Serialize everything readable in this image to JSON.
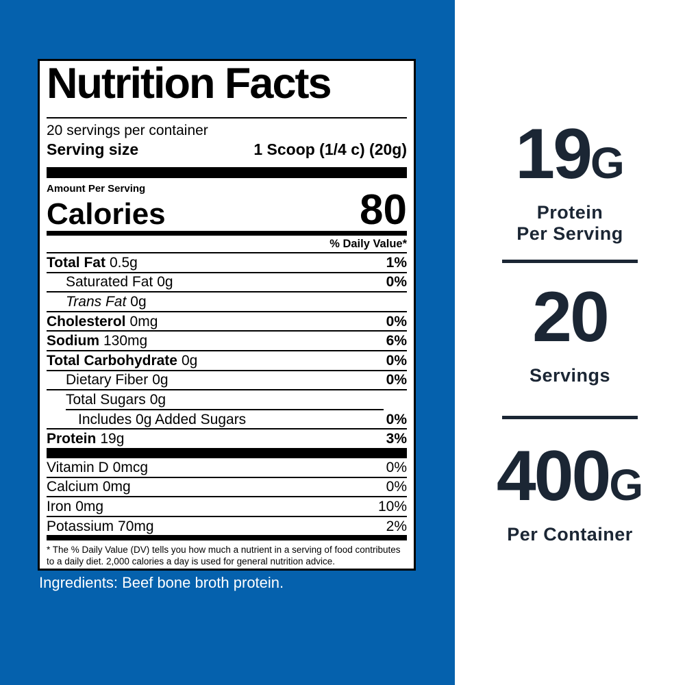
{
  "colors": {
    "background_blue": "#0561ad",
    "stats_navy": "#1b2634",
    "label_black": "#000000",
    "label_white": "#ffffff"
  },
  "nutrition_label": {
    "title": "Nutrition Facts",
    "servings_per_container": "20 servings per container",
    "serving_size_label": "Serving size",
    "serving_size_value": "1 Scoop (1/4 c) (20g)",
    "amount_per_serving": "Amount Per Serving",
    "calories_label": "Calories",
    "calories_value": "80",
    "daily_value_header": "% Daily Value*",
    "rows": [
      {
        "name": "Total Fat",
        "amount": "0.5g",
        "dv": "1%",
        "bold": true,
        "italic": false,
        "indent": 0,
        "sep_indent": false
      },
      {
        "name": "Saturated Fat",
        "amount": "0g",
        "dv": "0%",
        "bold": false,
        "italic": false,
        "indent": 1,
        "sep_indent": false
      },
      {
        "name": "Trans Fat",
        "amount": "0g",
        "dv": "",
        "bold": false,
        "italic": true,
        "indent": 1,
        "sep_indent": false
      },
      {
        "name": "Cholesterol",
        "amount": "0mg",
        "dv": "0%",
        "bold": true,
        "italic": false,
        "indent": 0,
        "sep_indent": false
      },
      {
        "name": "Sodium",
        "amount": "130mg",
        "dv": "6%",
        "bold": true,
        "italic": false,
        "indent": 0,
        "sep_indent": false
      },
      {
        "name": "Total Carbohydrate",
        "amount": "0g",
        "dv": "0%",
        "bold": true,
        "italic": false,
        "indent": 0,
        "sep_indent": false
      },
      {
        "name": "Dietary Fiber",
        "amount": "0g",
        "dv": "0%",
        "bold": false,
        "italic": false,
        "indent": 1,
        "sep_indent": false
      },
      {
        "name": "Total Sugars",
        "amount": "0g",
        "dv": "",
        "bold": false,
        "italic": false,
        "indent": 1,
        "sep_indent": false
      },
      {
        "name": "Includes 0g Added Sugars",
        "amount": "",
        "dv": "0%",
        "bold": false,
        "italic": false,
        "indent": 2,
        "sep_indent": true
      },
      {
        "name": "Protein",
        "amount": "19g",
        "dv": "3%",
        "bold": true,
        "italic": false,
        "indent": 0,
        "sep_indent": false
      }
    ],
    "micronutrients": [
      {
        "name": "Vitamin D",
        "amount": "0mcg",
        "dv": "0%"
      },
      {
        "name": "Calcium",
        "amount": "0mg",
        "dv": "0%"
      },
      {
        "name": "Iron",
        "amount": "0mg",
        "dv": "10%"
      },
      {
        "name": "Potassium",
        "amount": "70mg",
        "dv": "2%"
      }
    ],
    "footnote": "* The % Daily Value (DV) tells you how much a nutrient in a serving of food contributes to a daily diet. 2,000 calories a day is used for general nutrition advice."
  },
  "ingredients": "Ingredients: Beef bone broth protein.",
  "stats": [
    {
      "value": "19",
      "unit": "G",
      "line1": "Protein",
      "line2": "Per Serving"
    },
    {
      "value": "20",
      "unit": "",
      "line1": "Servings",
      "line2": ""
    },
    {
      "value": "400",
      "unit": "G",
      "line1": "Per Container",
      "line2": ""
    }
  ]
}
